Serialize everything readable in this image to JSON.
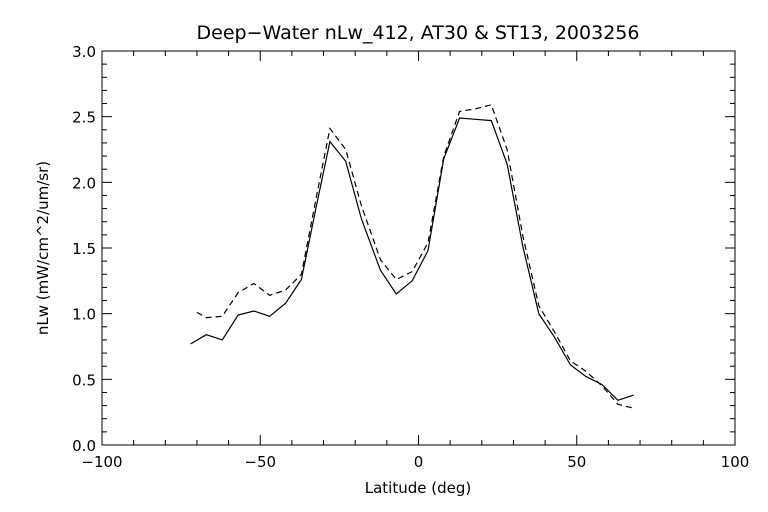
{
  "chart_data": {
    "type": "line",
    "title": "Deep−Water nLw_412, AT30 & ST13, 2003256",
    "xlabel": "Latitude (deg)",
    "ylabel": "nLw (mW/cm^2/um/sr)",
    "xlim": [
      -100,
      100
    ],
    "ylim": [
      0.0,
      3.0
    ],
    "x_ticks": [
      "−100",
      "−50",
      "0",
      "50",
      "100"
    ],
    "y_ticks": [
      "0.0",
      "0.5",
      "1.0",
      "1.5",
      "2.0",
      "2.5",
      "3.0"
    ],
    "grid": false,
    "series": [
      {
        "style": "solid",
        "x": [
          -72,
          -67,
          -62,
          -57,
          -52,
          -47,
          -42,
          -37,
          -32,
          -28,
          -23,
          -18,
          -12,
          -7,
          -2,
          3,
          8,
          13,
          18,
          23,
          28,
          33,
          38,
          43,
          48,
          53,
          58,
          63,
          68
        ],
        "y": [
          0.77,
          0.84,
          0.8,
          0.99,
          1.02,
          0.98,
          1.08,
          1.26,
          1.85,
          2.31,
          2.16,
          1.72,
          1.33,
          1.15,
          1.25,
          1.48,
          2.18,
          2.49,
          2.48,
          2.47,
          2.14,
          1.51,
          1.0,
          0.82,
          0.61,
          0.52,
          0.46,
          0.34,
          0.38
        ]
      },
      {
        "style": "dashed",
        "x": [
          -70,
          -67,
          -62,
          -57,
          -52,
          -47,
          -42,
          -37,
          -32,
          -28,
          -23,
          -18,
          -12,
          -7,
          -2,
          3,
          8,
          13,
          18,
          23,
          28,
          33,
          38,
          43,
          48,
          53,
          58,
          63,
          68
        ],
        "y": [
          1.01,
          0.97,
          0.98,
          1.16,
          1.23,
          1.14,
          1.18,
          1.3,
          1.92,
          2.41,
          2.25,
          1.82,
          1.41,
          1.26,
          1.32,
          1.54,
          2.2,
          2.54,
          2.56,
          2.59,
          2.25,
          1.59,
          1.06,
          0.86,
          0.64,
          0.56,
          0.45,
          0.31,
          0.28
        ]
      }
    ]
  }
}
